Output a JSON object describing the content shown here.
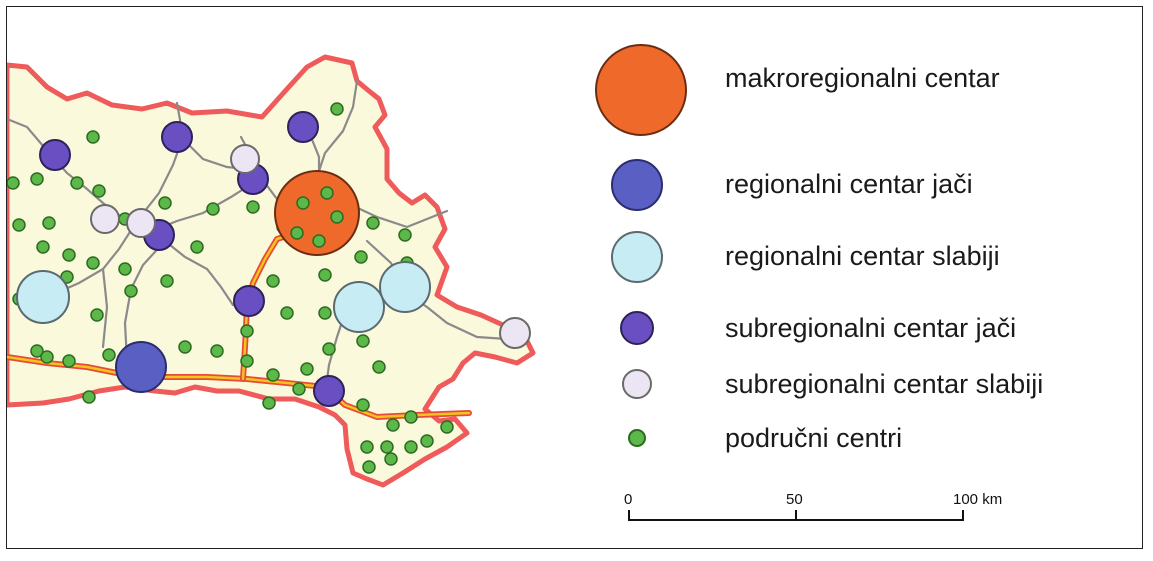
{
  "legend": {
    "items": [
      {
        "key": "macro",
        "label": "makroregionalni centar",
        "fill": "#ef6a2a",
        "stroke": "#6a2d12"
      },
      {
        "key": "reg_strong",
        "label": "regionalni centar jači",
        "fill": "#5a5fc4",
        "stroke": "#2b2d6e"
      },
      {
        "key": "reg_weak",
        "label": "regionalni centar slabiji",
        "fill": "#c8ecf4",
        "stroke": "#5a6a70"
      },
      {
        "key": "sub_strong",
        "label": "subregionalni centar jači",
        "fill": "#6a4fc2",
        "stroke": "#2d225a"
      },
      {
        "key": "sub_weak",
        "label": "subregionalni centar slabiji",
        "fill": "#ece6f4",
        "stroke": "#6a6a6a"
      },
      {
        "key": "area",
        "label": "područni centri",
        "fill": "#5cb848",
        "stroke": "#2d6a22"
      }
    ]
  },
  "scale_bar": {
    "ticks": [
      "0",
      "50",
      "100 km"
    ]
  },
  "colors": {
    "region_fill": "#fbf9dc",
    "border": "#ef5a5a",
    "road_gray": "#8a8a8a",
    "road_major_outer": "#e84a3a",
    "road_major_inner": "#f2c41e"
  }
}
